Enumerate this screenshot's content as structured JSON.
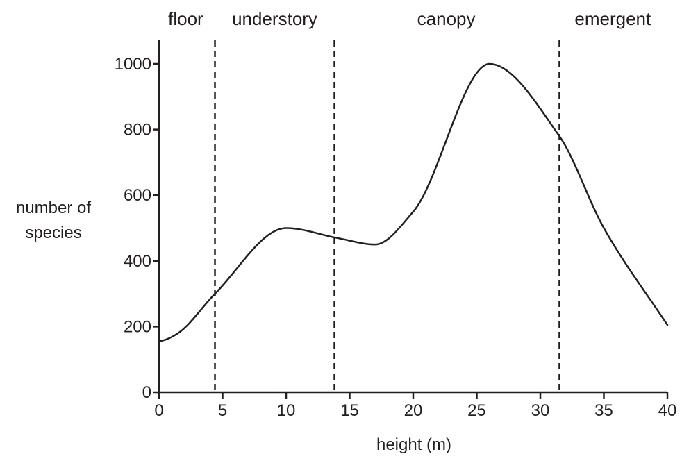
{
  "chart_data": {
    "type": "line",
    "title": "",
    "xlabel": "height (m)",
    "ylabel_lines": [
      "number of",
      "species"
    ],
    "xlim": [
      0,
      40
    ],
    "ylim": [
      0,
      1000
    ],
    "x_ticks": [
      0,
      5,
      10,
      15,
      20,
      25,
      30,
      35,
      40
    ],
    "y_ticks": [
      0,
      200,
      400,
      600,
      800,
      1000
    ],
    "grid": false,
    "legend": "none",
    "series": [
      {
        "x": [
          0,
          0.5,
          1.5,
          4.4,
          10,
          14,
          17,
          20,
          26,
          31.5,
          35,
          40
        ],
        "y": [
          155,
          160,
          180,
          300,
          500,
          470,
          450,
          550,
          1000,
          780,
          500,
          205
        ]
      }
    ],
    "dividers_x": [
      4.4,
      13.8,
      31.5
    ],
    "regions": [
      {
        "label": "floor",
        "x": 2.1
      },
      {
        "label": "understory",
        "x": 9.1
      },
      {
        "label": "canopy",
        "x": 22.6
      },
      {
        "label": "emergent",
        "x": 35.7
      }
    ]
  }
}
